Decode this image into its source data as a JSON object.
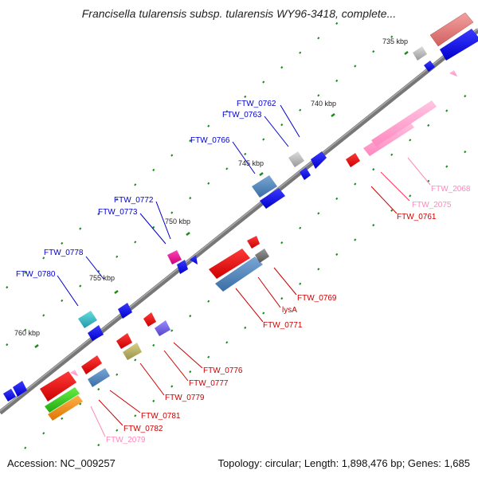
{
  "title": "Francisella tularensis subsp. tularensis WY96-3418, complete...",
  "footer": {
    "accession": "Accession: NC_009257",
    "summary": "Topology: circular; Length: 1,898,476 bp; Genes: 1,685"
  },
  "ticks": [
    "735 kbp",
    "740 kbp",
    "745 kbp",
    "750 kbp",
    "755 kbp",
    "760 kbp"
  ],
  "genes_upper": [
    "FTW_0762",
    "FTW_0763",
    "FTW_0766",
    "FTW_0772",
    "FTW_0773",
    "FTW_0778",
    "FTW_0780"
  ],
  "genes_lower": [
    "FTW_2068",
    "FTW_2075",
    "FTW_0761",
    "FTW_0769",
    "lysA",
    "FTW_0771",
    "FTW_0776",
    "FTW_0777",
    "FTW_0779",
    "FTW_0781",
    "FTW_0782",
    "FTW_2079"
  ],
  "colors": {
    "backbone": "#777777",
    "forward_gene": "#0000ee",
    "reverse_gene": "#ee0000",
    "rrna_pink": "#ff99cc",
    "label_blue": "#0000cc",
    "label_red": "#cc0000",
    "label_pink": "#ff88bb",
    "tick_green": "#1a8a1a"
  }
}
